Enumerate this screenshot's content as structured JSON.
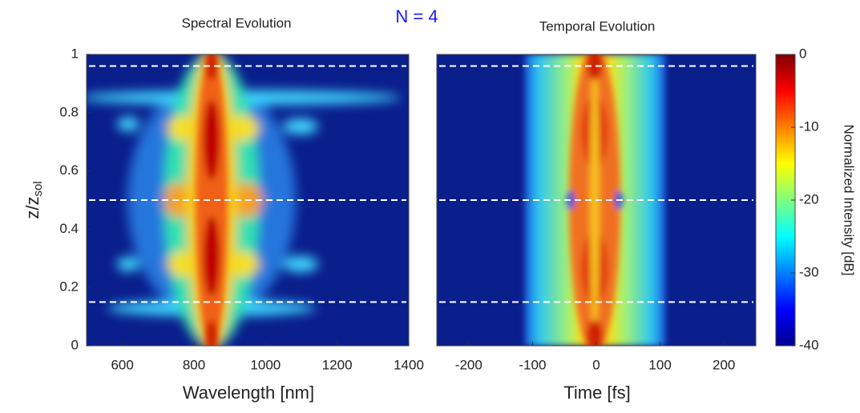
{
  "chart_data": [
    {
      "type": "heatmap",
      "title": "Spectral Evolution",
      "xlabel": "Wavelength [nm]",
      "ylabel": "z/z",
      "ylabel_sub": "sol",
      "xlim": [
        500,
        1400
      ],
      "xticks": [
        600,
        800,
        1000,
        1200,
        1400
      ],
      "ylim": [
        0,
        1
      ],
      "yticks": [
        0,
        0.2,
        0.4,
        0.6,
        0.8,
        1
      ],
      "hlines": [
        0.96,
        0.5,
        0.15
      ]
    },
    {
      "type": "heatmap",
      "title": "Temporal Evolution",
      "xlabel": "Time [fs]",
      "xlim": [
        -250,
        250
      ],
      "xticks": [
        -200,
        -100,
        0,
        100,
        200
      ],
      "ylim": [
        0,
        1
      ],
      "hlines": [
        0.96,
        0.5,
        0.15
      ]
    },
    {
      "type": "colorbar",
      "label": "Normalized Intensity [dB]",
      "ylim": [
        -40,
        0
      ],
      "yticks": [
        0,
        -10,
        -20,
        -30,
        -40
      ]
    }
  ],
  "annotation": "N = 4"
}
